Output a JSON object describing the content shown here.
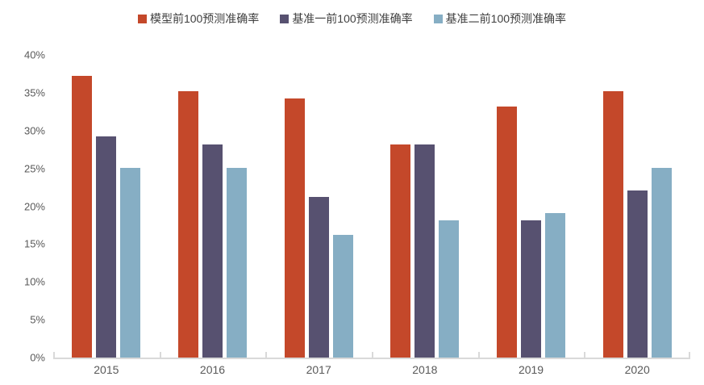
{
  "chart_data": {
    "type": "bar",
    "categories": [
      "2015",
      "2016",
      "2017",
      "2018",
      "2019",
      "2020"
    ],
    "series": [
      {
        "name": "模型前100预测准确率",
        "color": "#c4482a",
        "values": [
          37.2,
          35.2,
          34.2,
          28.2,
          33.2,
          35.2
        ]
      },
      {
        "name": "基准一前100预测准确率",
        "color": "#575170",
        "values": [
          29.2,
          28.2,
          21.2,
          28.2,
          18.1,
          22.1
        ]
      },
      {
        "name": "基准二前100预测准确率",
        "color": "#86aec4",
        "values": [
          25.1,
          25.1,
          16.2,
          18.1,
          19.1,
          25.1
        ]
      }
    ],
    "title": "",
    "xlabel": "",
    "ylabel": "",
    "ylim": [
      0,
      40
    ],
    "ytick_step": 5,
    "ytick_labels": [
      "0%",
      "5%",
      "10%",
      "15%",
      "20%",
      "25%",
      "30%",
      "35%",
      "40%"
    ],
    "grid": false,
    "legend_position": "top"
  },
  "colors": {
    "axis_line": "#d9d9d9",
    "axis_text": "#595959",
    "legend_text": "#3f3f3f",
    "background": "#ffffff"
  }
}
